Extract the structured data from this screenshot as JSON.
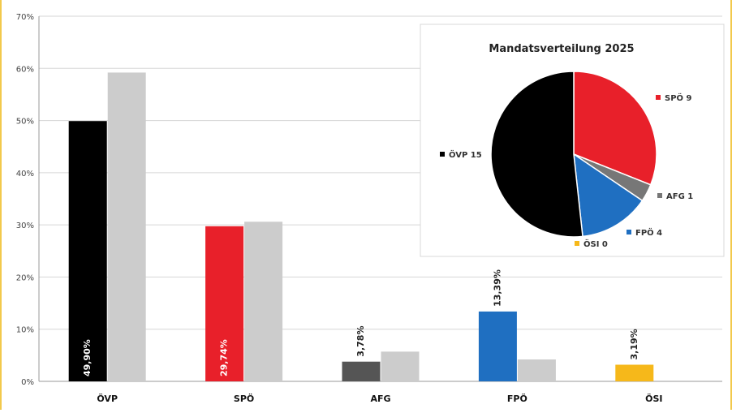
{
  "chart_data": [
    {
      "type": "bar",
      "categories": [
        "ÖVP",
        "SPÖ",
        "AFG",
        "FPÖ",
        "ÖSI"
      ],
      "series": [
        {
          "values": [
            49.9,
            29.74,
            3.78,
            13.39,
            3.19
          ],
          "colors": [
            "#000000",
            "#e8202a",
            "#555555",
            "#1f6fc1",
            "#f6b81a"
          ]
        },
        {
          "values": [
            59.2,
            30.6,
            5.7,
            4.2,
            null
          ],
          "colors": [
            "#cccccc",
            "#cccccc",
            "#cccccc",
            "#cccccc",
            "#cccccc"
          ]
        }
      ],
      "data_labels": [
        "49,90%",
        "29,74%",
        "3,78%",
        "13,39%",
        "3,19%"
      ],
      "y_ticks": [
        "0%",
        "10%",
        "20%",
        "30%",
        "40%",
        "50%",
        "60%",
        "70%"
      ],
      "ylim": [
        0,
        70
      ],
      "grid": true
    },
    {
      "type": "pie",
      "title": "Mandatsverteilung 2025",
      "slices": [
        {
          "label": "SPÖ 9",
          "value": 9,
          "color": "#e8202a"
        },
        {
          "label": "AFG 1",
          "value": 1,
          "color": "#777777"
        },
        {
          "label": "FPÖ 4",
          "value": 4,
          "color": "#1f6fc1"
        },
        {
          "label": "ÖSI 0",
          "value": 0,
          "color": "#f6b81a"
        },
        {
          "label": "ÖVP 15",
          "value": 15,
          "color": "#000000"
        }
      ],
      "legend": "labels beside slices"
    }
  ]
}
